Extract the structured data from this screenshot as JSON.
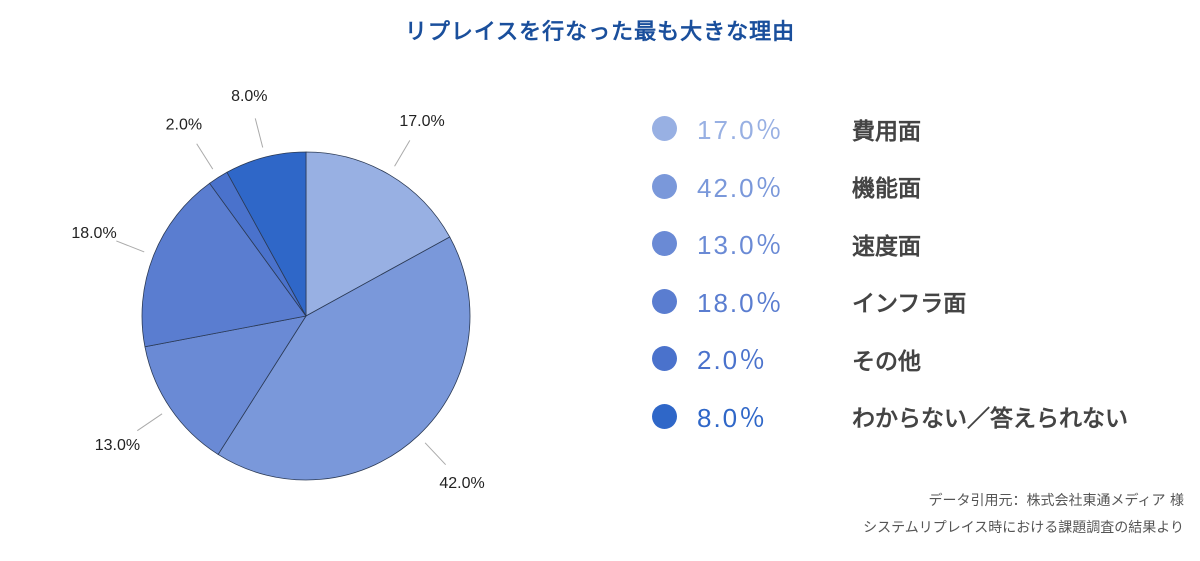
{
  "chart_data": {
    "type": "pie",
    "title": "リプレイスを行なった最も大きな理由",
    "categories": [
      "費用面",
      "機能面",
      "速度面",
      "インフラ面",
      "その他",
      "わからない／答えられない"
    ],
    "values": [
      17.0,
      42.0,
      13.0,
      18.0,
      2.0,
      8.0
    ],
    "labels": [
      "17.0%",
      "42.0%",
      "13.0%",
      "18.0%",
      "2.0%",
      "8.0%"
    ],
    "legend_values": [
      "17.0％",
      "42.0％",
      "13.0％",
      "18.0％",
      "2.0％",
      "8.0％"
    ],
    "colors": [
      "#98b0e3",
      "#7a98da",
      "#6a8ad5",
      "#5a7dd0",
      "#4a72cc",
      "#2f67c8"
    ],
    "legend_text_colors": [
      "#98b0e3",
      "#7a98da",
      "#6a8ad5",
      "#5a7dd0",
      "#4a72cc",
      "#2f67c8"
    ],
    "legend_position": "right"
  },
  "source": {
    "line1": "データ引用元：株式会社東通メディア 様",
    "line2": "システムリプレイス時における課題調査の結果より"
  }
}
